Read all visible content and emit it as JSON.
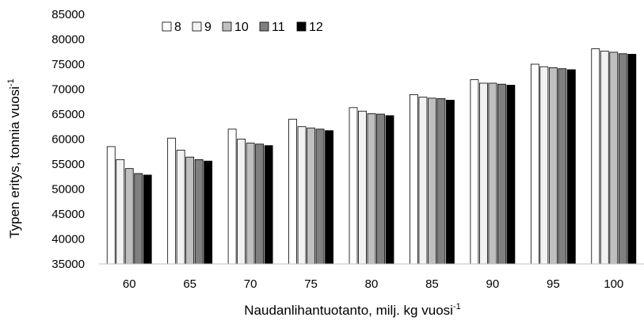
{
  "chart_data": {
    "type": "bar",
    "title": "",
    "xlabel": "Naudanlihantuotanto, milj. kg vuosi",
    "xlabel_superscript": "-1",
    "ylabel": "Typen eritys, tonnia vuosi",
    "ylabel_superscript": "-1",
    "ylim": [
      35000,
      85000
    ],
    "yticks": [
      35000,
      40000,
      45000,
      50000,
      55000,
      60000,
      65000,
      70000,
      75000,
      80000,
      85000
    ],
    "ytick_labels": [
      "35000",
      "40000",
      "45000",
      "50000",
      "55000",
      "60000",
      "65000",
      "70000",
      "75000",
      "80000",
      "85000"
    ],
    "grid": false,
    "legend_position": "top-left",
    "categories": [
      "60",
      "65",
      "70",
      "75",
      "80",
      "85",
      "90",
      "95",
      "100"
    ],
    "series": [
      {
        "name": "8",
        "color": "#ffffff",
        "values": [
          58500,
          60200,
          62000,
          64000,
          66300,
          68900,
          71900,
          75000,
          78100
        ]
      },
      {
        "name": "9",
        "color": "#f2f2f2",
        "values": [
          55900,
          57800,
          60000,
          62500,
          65600,
          68400,
          71200,
          74500,
          77600
        ]
      },
      {
        "name": "10",
        "color": "#bfbfbf",
        "values": [
          54100,
          56400,
          59200,
          62200,
          65100,
          68200,
          71200,
          74300,
          77400
        ]
      },
      {
        "name": "11",
        "color": "#7f7f7f",
        "values": [
          53100,
          55900,
          59000,
          62000,
          65000,
          68100,
          71000,
          74100,
          77100
        ]
      },
      {
        "name": "12",
        "color": "#000000",
        "values": [
          52800,
          55600,
          58700,
          61700,
          64700,
          67800,
          70800,
          73900,
          77000
        ]
      }
    ]
  }
}
